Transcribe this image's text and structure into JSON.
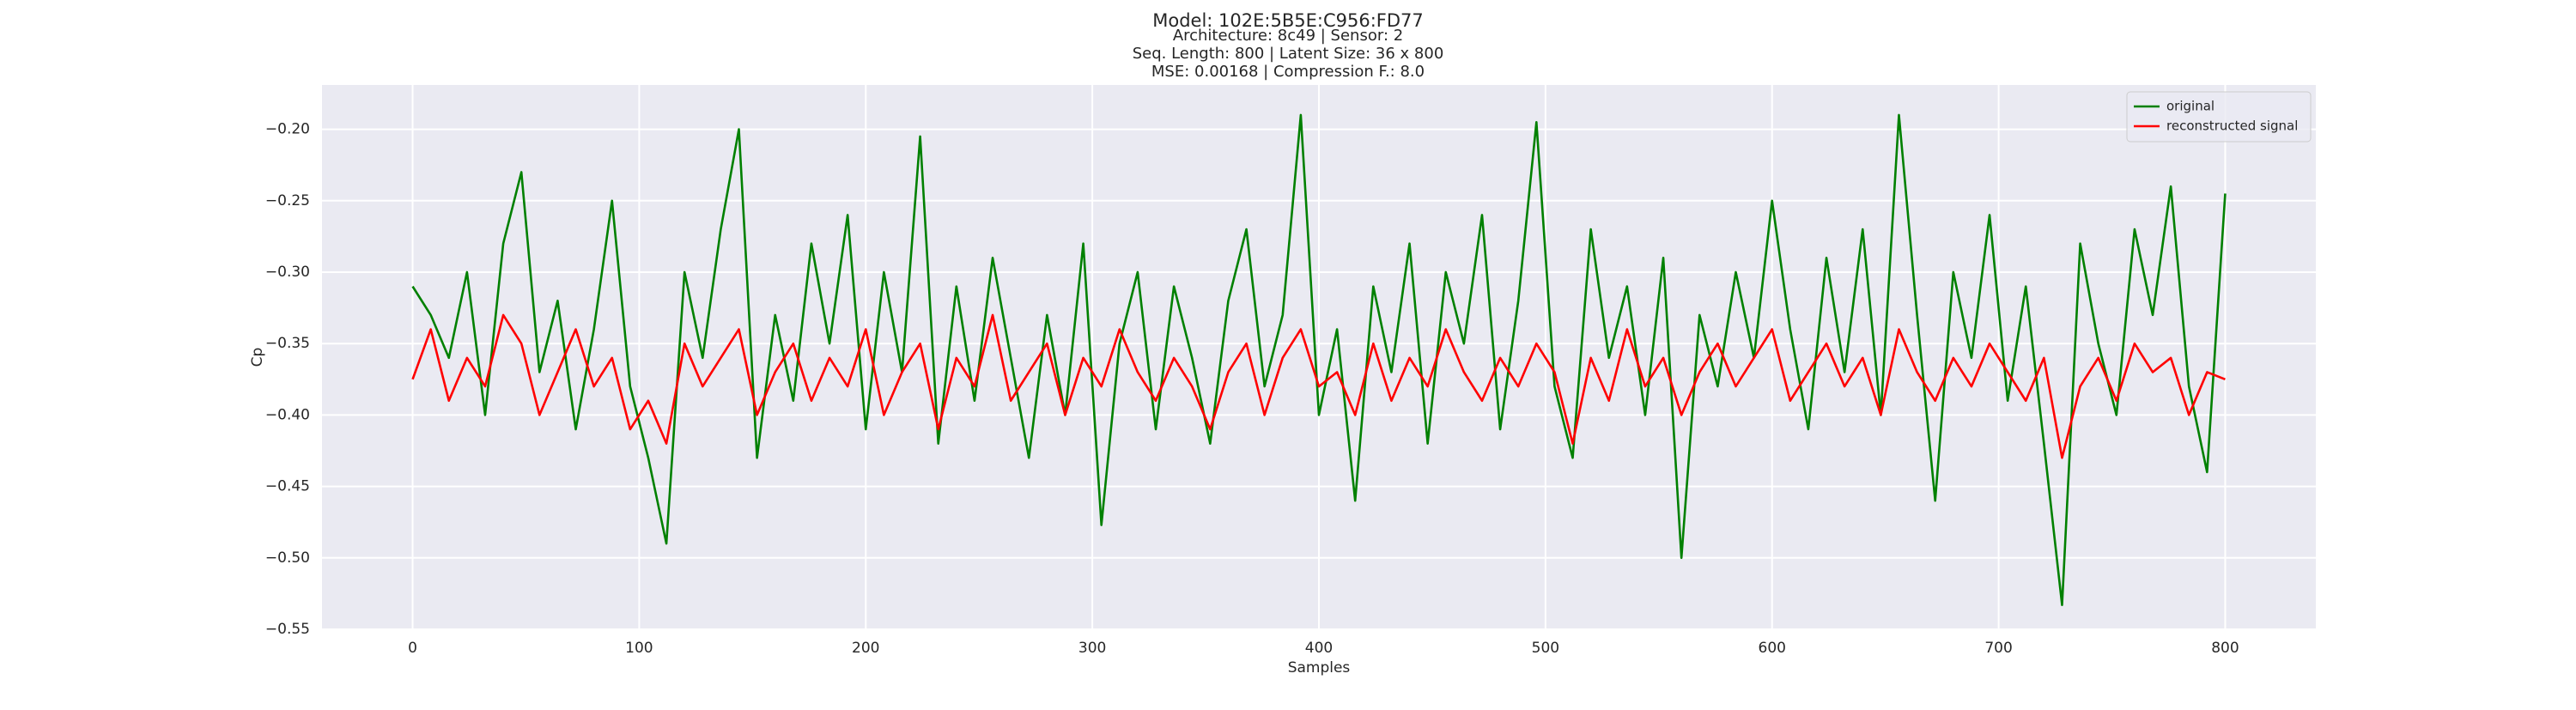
{
  "chart_data": {
    "type": "line",
    "title": "Model: 102E:5B5E:C956:FD77",
    "subtitle": [
      "Architecture: 8c49 | Sensor: 2",
      "Seq. Length: 800 | Latent Size: 36 x 800",
      "MSE: 0.00168 | Compression F.: 8.0"
    ],
    "x_label": "Samples",
    "y_label": "Cp",
    "x": [
      0,
      8,
      16,
      24,
      32,
      40,
      48,
      56,
      64,
      72,
      80,
      88,
      96,
      104,
      112,
      120,
      128,
      136,
      144,
      152,
      160,
      168,
      176,
      184,
      192,
      200,
      208,
      216,
      224,
      232,
      240,
      248,
      256,
      264,
      272,
      280,
      288,
      296,
      304,
      312,
      320,
      328,
      336,
      344,
      352,
      360,
      368,
      376,
      384,
      392,
      400,
      408,
      416,
      424,
      432,
      440,
      448,
      456,
      464,
      472,
      480,
      488,
      496,
      504,
      512,
      520,
      528,
      536,
      544,
      552,
      560,
      568,
      576,
      584,
      592,
      600,
      608,
      616,
      624,
      632,
      640,
      648,
      656,
      664,
      672,
      680,
      688,
      696,
      704,
      712,
      720,
      728,
      736,
      744,
      752,
      760,
      768,
      776,
      784,
      792,
      800
    ],
    "series": [
      {
        "name": "original",
        "color": "#008000",
        "values": [
          -0.31,
          -0.33,
          -0.36,
          -0.3,
          -0.4,
          -0.28,
          -0.23,
          -0.37,
          -0.32,
          -0.41,
          -0.34,
          -0.25,
          -0.38,
          -0.43,
          -0.49,
          -0.3,
          -0.36,
          -0.27,
          -0.2,
          -0.43,
          -0.33,
          -0.39,
          -0.28,
          -0.35,
          -0.26,
          -0.41,
          -0.3,
          -0.37,
          -0.205,
          -0.42,
          -0.31,
          -0.39,
          -0.29,
          -0.36,
          -0.43,
          -0.33,
          -0.4,
          -0.28,
          -0.477,
          -0.35,
          -0.3,
          -0.41,
          -0.31,
          -0.36,
          -0.42,
          -0.32,
          -0.27,
          -0.38,
          -0.33,
          -0.19,
          -0.4,
          -0.34,
          -0.46,
          -0.31,
          -0.37,
          -0.28,
          -0.42,
          -0.3,
          -0.35,
          -0.26,
          -0.41,
          -0.32,
          -0.195,
          -0.38,
          -0.43,
          -0.27,
          -0.36,
          -0.31,
          -0.4,
          -0.29,
          -0.5,
          -0.33,
          -0.38,
          -0.3,
          -0.36,
          -0.25,
          -0.34,
          -0.41,
          -0.29,
          -0.37,
          -0.27,
          -0.4,
          -0.19,
          -0.33,
          -0.46,
          -0.3,
          -0.36,
          -0.26,
          -0.39,
          -0.31,
          -0.42,
          -0.533,
          -0.28,
          -0.35,
          -0.4,
          -0.27,
          -0.33,
          -0.24,
          -0.38,
          -0.44,
          -0.245
        ]
      },
      {
        "name": "reconstructed signal",
        "color": "#ff0000",
        "values": [
          -0.375,
          -0.34,
          -0.39,
          -0.36,
          -0.38,
          -0.33,
          -0.35,
          -0.4,
          -0.37,
          -0.34,
          -0.38,
          -0.36,
          -0.41,
          -0.39,
          -0.42,
          -0.35,
          -0.38,
          -0.36,
          -0.34,
          -0.4,
          -0.37,
          -0.35,
          -0.39,
          -0.36,
          -0.38,
          -0.34,
          -0.4,
          -0.37,
          -0.35,
          -0.41,
          -0.36,
          -0.38,
          -0.33,
          -0.39,
          -0.37,
          -0.35,
          -0.4,
          -0.36,
          -0.38,
          -0.34,
          -0.37,
          -0.39,
          -0.36,
          -0.38,
          -0.41,
          -0.37,
          -0.35,
          -0.4,
          -0.36,
          -0.34,
          -0.38,
          -0.37,
          -0.4,
          -0.35,
          -0.39,
          -0.36,
          -0.38,
          -0.34,
          -0.37,
          -0.39,
          -0.36,
          -0.38,
          -0.35,
          -0.37,
          -0.42,
          -0.36,
          -0.39,
          -0.34,
          -0.38,
          -0.36,
          -0.4,
          -0.37,
          -0.35,
          -0.38,
          -0.36,
          -0.34,
          -0.39,
          -0.37,
          -0.35,
          -0.38,
          -0.36,
          -0.4,
          -0.34,
          -0.37,
          -0.39,
          -0.36,
          -0.38,
          -0.35,
          -0.37,
          -0.39,
          -0.36,
          -0.43,
          -0.38,
          -0.36,
          -0.39,
          -0.35,
          -0.37,
          -0.36,
          -0.4,
          -0.37,
          -0.375
        ]
      }
    ],
    "xlim": [
      -40,
      840
    ],
    "ylim": [
      -0.55,
      -0.169
    ],
    "xticks": [
      0,
      100,
      200,
      300,
      400,
      500,
      600,
      700,
      800
    ],
    "yticks": [
      {
        "value": -0.55,
        "label": "−0.55"
      },
      {
        "value": -0.5,
        "label": "−0.50"
      },
      {
        "value": -0.45,
        "label": "−0.45"
      },
      {
        "value": -0.4,
        "label": "−0.40"
      },
      {
        "value": -0.35,
        "label": "−0.35"
      },
      {
        "value": -0.3,
        "label": "−0.30"
      },
      {
        "value": -0.25,
        "label": "−0.25"
      },
      {
        "value": -0.2,
        "label": "−0.20"
      }
    ],
    "grid": true,
    "legend": "upper right"
  }
}
